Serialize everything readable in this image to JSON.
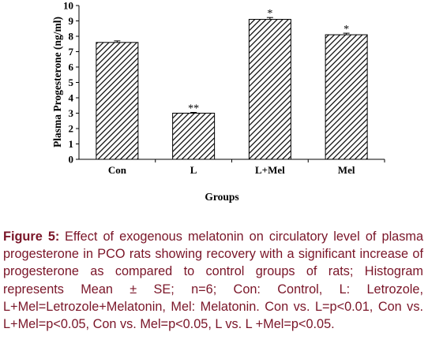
{
  "chart_data": {
    "type": "bar",
    "categories": [
      "Con",
      "L",
      "L+Mel",
      "Mel"
    ],
    "values": [
      7.6,
      3.0,
      9.1,
      8.1
    ],
    "errors": [
      0.1,
      0.05,
      0.12,
      0.1
    ],
    "annotations": [
      "",
      "**",
      "*",
      "*"
    ],
    "xlabel": "Groups",
    "ylabel": "Plasma Progesterone (ng/ml)",
    "ylim": [
      0,
      10
    ],
    "yticks": [
      0,
      1,
      2,
      3,
      4,
      5,
      6,
      7,
      8,
      9,
      10
    ],
    "bar_pattern": "diagonal-hatch",
    "grid": false,
    "legend": "none"
  },
  "caption": {
    "label": "Figure 5:",
    "text": "Effect of exogenous melatonin on circulatory level of plasma progesterone in PCO rats showing recovery with a significant increase of progesterone as compared to control groups of rats; Histogram represents Mean ± SE; n=6; Con: Control, L: Letrozole, L+Mel=Letrozole+Melatonin, Mel: Melatonin. Con vs. L=p<0.01, Con vs. L+Mel=p<0.05, Con vs. Mel=p<0.05, L vs. L +Mel=p<0.05."
  }
}
